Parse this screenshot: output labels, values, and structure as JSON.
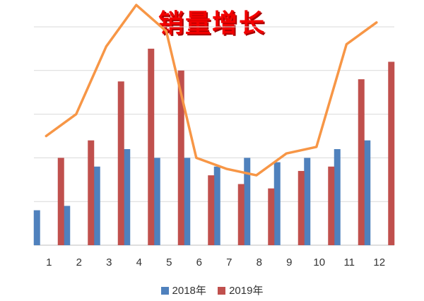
{
  "chart_data": {
    "type": "bar",
    "title": "销量增长",
    "xlabel": "",
    "ylabel": "",
    "categories": [
      "1",
      "2",
      "3",
      "4",
      "5",
      "6",
      "7",
      "8",
      "9",
      "10",
      "11",
      "12"
    ],
    "series": [
      {
        "name": "2018年",
        "type": "bar",
        "color": "#4f81bd",
        "values": [
          0.8,
          0.9,
          1.8,
          2.2,
          2.0,
          2.0,
          1.8,
          2.0,
          1.9,
          2.0,
          2.2,
          2.4
        ]
      },
      {
        "name": "2019年",
        "type": "bar",
        "color": "#c0504d",
        "values": [
          2.0,
          2.4,
          3.75,
          4.5,
          4.0,
          1.6,
          1.4,
          1.3,
          1.7,
          1.8,
          3.8,
          4.2
        ]
      },
      {
        "type": "line",
        "color": "#f79646",
        "values": [
          2.5,
          3.0,
          4.55,
          5.5,
          4.9,
          2.0,
          1.75,
          1.6,
          2.1,
          2.25,
          4.6,
          5.1
        ]
      }
    ],
    "ylim": [
      0,
      5
    ],
    "grid": true,
    "legend": "bottom"
  }
}
